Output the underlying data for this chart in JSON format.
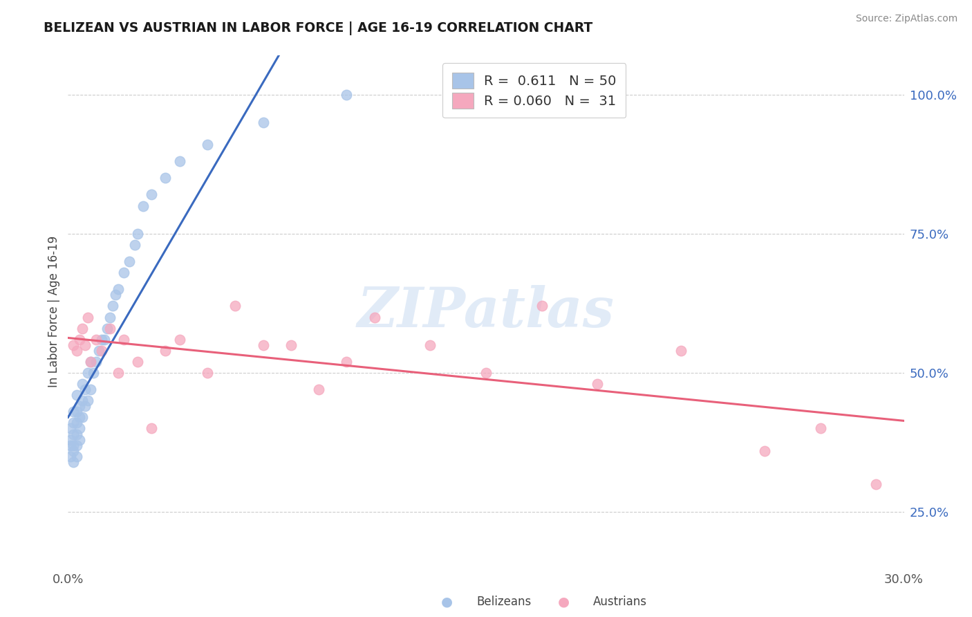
{
  "title": "BELIZEAN VS AUSTRIAN IN LABOR FORCE | AGE 16-19 CORRELATION CHART",
  "source_text": "Source: ZipAtlas.com",
  "ylabel": "In Labor Force | Age 16-19",
  "xmin": 0.0,
  "xmax": 0.3,
  "ymin": 0.15,
  "ymax": 1.07,
  "ytick_labels": [
    "25.0%",
    "50.0%",
    "75.0%",
    "100.0%"
  ],
  "ytick_values": [
    0.25,
    0.5,
    0.75,
    1.0
  ],
  "xtick_labels": [
    "0.0%",
    "30.0%"
  ],
  "xtick_values": [
    0.0,
    0.3
  ],
  "belizean_color": "#a8c4e8",
  "austrian_color": "#f5a8be",
  "trend_blue": "#3a6abf",
  "trend_pink": "#e8607a",
  "R_belizean": 0.611,
  "N_belizean": 50,
  "R_austrian": 0.06,
  "N_austrian": 31,
  "watermark": "ZIPatlas",
  "belizean_x": [
    0.001,
    0.001,
    0.001,
    0.001,
    0.002,
    0.002,
    0.002,
    0.002,
    0.002,
    0.002,
    0.003,
    0.003,
    0.003,
    0.003,
    0.003,
    0.003,
    0.004,
    0.004,
    0.004,
    0.004,
    0.005,
    0.005,
    0.005,
    0.006,
    0.006,
    0.007,
    0.007,
    0.008,
    0.008,
    0.009,
    0.01,
    0.011,
    0.012,
    0.013,
    0.014,
    0.015,
    0.016,
    0.017,
    0.018,
    0.02,
    0.022,
    0.024,
    0.025,
    0.027,
    0.03,
    0.035,
    0.04,
    0.05,
    0.07,
    0.1
  ],
  "belizean_y": [
    0.35,
    0.37,
    0.38,
    0.4,
    0.34,
    0.36,
    0.37,
    0.39,
    0.41,
    0.43,
    0.35,
    0.37,
    0.39,
    0.41,
    0.43,
    0.46,
    0.38,
    0.4,
    0.42,
    0.44,
    0.42,
    0.45,
    0.48,
    0.44,
    0.47,
    0.45,
    0.5,
    0.47,
    0.52,
    0.5,
    0.52,
    0.54,
    0.56,
    0.56,
    0.58,
    0.6,
    0.62,
    0.64,
    0.65,
    0.68,
    0.7,
    0.73,
    0.75,
    0.8,
    0.82,
    0.85,
    0.88,
    0.91,
    0.95,
    1.0
  ],
  "austrian_x": [
    0.002,
    0.003,
    0.004,
    0.005,
    0.006,
    0.007,
    0.008,
    0.01,
    0.012,
    0.015,
    0.018,
    0.02,
    0.025,
    0.03,
    0.035,
    0.04,
    0.05,
    0.06,
    0.07,
    0.08,
    0.09,
    0.1,
    0.11,
    0.13,
    0.15,
    0.17,
    0.19,
    0.22,
    0.25,
    0.27,
    0.29
  ],
  "austrian_y": [
    0.55,
    0.54,
    0.56,
    0.58,
    0.55,
    0.6,
    0.52,
    0.56,
    0.54,
    0.58,
    0.5,
    0.56,
    0.52,
    0.4,
    0.54,
    0.56,
    0.5,
    0.62,
    0.55,
    0.55,
    0.47,
    0.52,
    0.6,
    0.55,
    0.5,
    0.62,
    0.48,
    0.54,
    0.36,
    0.4,
    0.3
  ]
}
